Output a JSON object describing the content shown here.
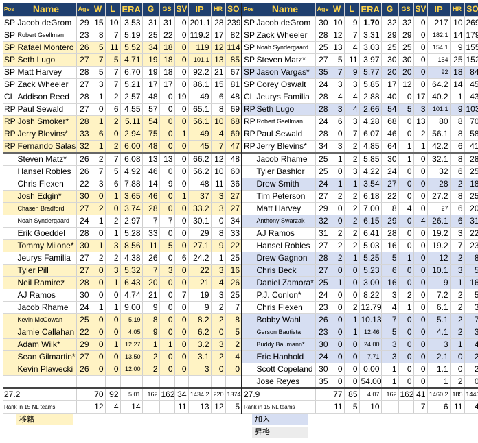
{
  "headers": [
    "Pos",
    "Name",
    "Age",
    "W",
    "L",
    "ERA",
    "G",
    "GS",
    "SV",
    "IP",
    "HR",
    "SO"
  ],
  "rows": [
    {
      "l": [
        "SP",
        "Jacob deGrom",
        "29",
        "15",
        "10",
        "3.53",
        "31",
        "31",
        "0",
        "201.1",
        "28",
        "239"
      ],
      "r": [
        "SP",
        "Jacob deGrom",
        "30",
        "10",
        "9",
        "1.70",
        "32",
        "32",
        "0",
        "217",
        "10",
        "269"
      ]
    },
    {
      "l": [
        "SP",
        "Robert Gsellman",
        "23",
        "8",
        "7",
        "5.19",
        "25",
        "22",
        "0",
        "119.2",
        "17",
        "82"
      ],
      "r": [
        "SP",
        "Zack Wheeler",
        "28",
        "12",
        "7",
        "3.31",
        "29",
        "29",
        "0",
        "182.1",
        "14",
        "179"
      ]
    },
    {
      "l": [
        "SP",
        "Rafael Montero",
        "26",
        "5",
        "11",
        "5.52",
        "34",
        "18",
        "0",
        "119",
        "12",
        "114"
      ],
      "r": [
        "SP",
        "Noah Syndergaard",
        "25",
        "13",
        "4",
        "3.03",
        "25",
        "25",
        "0",
        "154.1",
        "9",
        "155"
      ]
    },
    {
      "l": [
        "SP",
        "Seth Lugo",
        "27",
        "7",
        "5",
        "4.71",
        "19",
        "18",
        "0",
        "101.1",
        "13",
        "85"
      ],
      "r": [
        "SP",
        "Steven Matz*",
        "27",
        "5",
        "11",
        "3.97",
        "30",
        "30",
        "0",
        "154",
        "25",
        "152"
      ]
    },
    {
      "l": [
        "SP",
        "Matt Harvey",
        "28",
        "5",
        "7",
        "6.70",
        "19",
        "18",
        "0",
        "92.2",
        "21",
        "67"
      ],
      "r": [
        "SP",
        "Jason Vargas*",
        "35",
        "7",
        "9",
        "5.77",
        "20",
        "20",
        "0",
        "92",
        "18",
        "84"
      ]
    },
    {
      "l": [
        "SP",
        "Zack Wheeler",
        "27",
        "3",
        "7",
        "5.21",
        "17",
        "17",
        "0",
        "86.1",
        "15",
        "81"
      ],
      "r": [
        "SP",
        "Corey Oswalt",
        "24",
        "3",
        "3",
        "5.85",
        "17",
        "12",
        "0",
        "64.2",
        "14",
        "45"
      ]
    },
    {
      "l": [
        "CL",
        "Addison Reed",
        "28",
        "1",
        "2",
        "2.57",
        "48",
        "0",
        "19",
        "49",
        "6",
        "48"
      ],
      "r": [
        "CL",
        "Jeurys Familia",
        "28",
        "4",
        "4",
        "2.88",
        "40",
        "0",
        "17",
        "40.2",
        "1",
        "43"
      ]
    },
    {
      "l": [
        "RP",
        "Paul Sewald",
        "27",
        "0",
        "6",
        "4.55",
        "57",
        "0",
        "0",
        "65.1",
        "8",
        "69"
      ],
      "r": [
        "RP",
        "Seth Lugo",
        "28",
        "3",
        "4",
        "2.66",
        "54",
        "5",
        "3",
        "101.1",
        "9",
        "103"
      ]
    },
    {
      "l": [
        "RP",
        "Josh Smoker*",
        "28",
        "1",
        "2",
        "5.11",
        "54",
        "0",
        "0",
        "56.1",
        "10",
        "68"
      ],
      "r": [
        "RP",
        "Robert Gsellman",
        "24",
        "6",
        "3",
        "4.28",
        "68",
        "0",
        "13",
        "80",
        "8",
        "70"
      ]
    },
    {
      "l": [
        "RP",
        "Jerry Blevins*",
        "33",
        "6",
        "0",
        "2.94",
        "75",
        "0",
        "1",
        "49",
        "4",
        "69"
      ],
      "r": [
        "RP",
        "Paul Sewald",
        "28",
        "0",
        "7",
        "6.07",
        "46",
        "0",
        "2",
        "56.1",
        "8",
        "58"
      ]
    },
    {
      "l": [
        "RP",
        "Fernando Salas",
        "32",
        "1",
        "2",
        "6.00",
        "48",
        "0",
        "0",
        "45",
        "7",
        "47"
      ],
      "r": [
        "RP",
        "Jerry Blevins*",
        "34",
        "3",
        "2",
        "4.85",
        "64",
        "1",
        "1",
        "42.2",
        "6",
        "41"
      ]
    },
    {
      "l": [
        "",
        "Steven Matz*",
        "26",
        "2",
        "7",
        "6.08",
        "13",
        "13",
        "0",
        "66.2",
        "12",
        "48"
      ],
      "r": [
        "",
        "Jacob Rhame",
        "25",
        "1",
        "2",
        "5.85",
        "30",
        "1",
        "0",
        "32.1",
        "8",
        "28"
      ]
    },
    {
      "l": [
        "",
        "Hansel Robles",
        "26",
        "7",
        "5",
        "4.92",
        "46",
        "0",
        "0",
        "56.2",
        "10",
        "60"
      ],
      "r": [
        "",
        "Tyler Bashlor",
        "25",
        "0",
        "3",
        "4.22",
        "24",
        "0",
        "0",
        "32",
        "6",
        "25"
      ]
    },
    {
      "l": [
        "",
        "Chris Flexen",
        "22",
        "3",
        "6",
        "7.88",
        "14",
        "9",
        "0",
        "48",
        "11",
        "36"
      ],
      "r": [
        "",
        "Drew Smith",
        "24",
        "1",
        "1",
        "3.54",
        "27",
        "0",
        "0",
        "28",
        "2",
        "18"
      ]
    },
    {
      "l": [
        "",
        "Josh Edgin*",
        "30",
        "0",
        "1",
        "3.65",
        "46",
        "0",
        "1",
        "37",
        "3",
        "27"
      ],
      "r": [
        "",
        "Tim Peterson",
        "27",
        "2",
        "2",
        "6.18",
        "22",
        "0",
        "0",
        "27.2",
        "8",
        "25"
      ]
    },
    {
      "l": [
        "",
        "Chasen Bradford",
        "27",
        "2",
        "0",
        "3.74",
        "28",
        "0",
        "0",
        "33.2",
        "3",
        "27"
      ],
      "r": [
        "",
        "Matt Harvey",
        "29",
        "0",
        "2",
        "7.00",
        "8",
        "4",
        "0",
        "27",
        "6",
        "20"
      ]
    },
    {
      "l": [
        "",
        "Noah Syndergaard",
        "24",
        "1",
        "2",
        "2.97",
        "7",
        "7",
        "0",
        "30.1",
        "0",
        "34"
      ],
      "r": [
        "",
        "Anthony Swarzak",
        "32",
        "0",
        "2",
        "6.15",
        "29",
        "0",
        "4",
        "26.1",
        "6",
        "31"
      ]
    },
    {
      "l": [
        "",
        "Erik Goeddel",
        "28",
        "0",
        "1",
        "5.28",
        "33",
        "0",
        "0",
        "29",
        "8",
        "33"
      ],
      "r": [
        "",
        "AJ Ramos",
        "31",
        "2",
        "2",
        "6.41",
        "28",
        "0",
        "0",
        "19.2",
        "3",
        "22"
      ]
    },
    {
      "l": [
        "",
        "Tommy Milone*",
        "30",
        "1",
        "3",
        "8.56",
        "11",
        "5",
        "0",
        "27.1",
        "9",
        "22"
      ],
      "r": [
        "",
        "Hansel Robles",
        "27",
        "2",
        "2",
        "5.03",
        "16",
        "0",
        "0",
        "19.2",
        "7",
        "23"
      ]
    },
    {
      "l": [
        "",
        "Jeurys Familia",
        "27",
        "2",
        "2",
        "4.38",
        "26",
        "0",
        "6",
        "24.2",
        "1",
        "25"
      ],
      "r": [
        "",
        "Drew Gagnon",
        "28",
        "2",
        "1",
        "5.25",
        "5",
        "1",
        "0",
        "12",
        "2",
        "8"
      ]
    },
    {
      "l": [
        "",
        "Tyler Pill",
        "27",
        "0",
        "3",
        "5.32",
        "7",
        "3",
        "0",
        "22",
        "3",
        "16"
      ],
      "r": [
        "",
        "Chris Beck",
        "27",
        "0",
        "0",
        "5.23",
        "6",
        "0",
        "0",
        "10.1",
        "3",
        "5"
      ]
    },
    {
      "l": [
        "",
        "Neil Ramirez",
        "28",
        "0",
        "1",
        "6.43",
        "20",
        "0",
        "0",
        "21",
        "4",
        "26"
      ],
      "r": [
        "",
        "Daniel Zamora*",
        "25",
        "1",
        "0",
        "3.00",
        "16",
        "0",
        "0",
        "9",
        "1",
        "16"
      ]
    },
    {
      "l": [
        "",
        "AJ Ramos",
        "30",
        "0",
        "0",
        "4.74",
        "21",
        "0",
        "7",
        "19",
        "3",
        "25"
      ],
      "r": [
        "",
        "P.J. Conlon*",
        "24",
        "0",
        "0",
        "8.22",
        "3",
        "2",
        "0",
        "7.2",
        "2",
        "5"
      ]
    },
    {
      "l": [
        "",
        "Jacob Rhame",
        "24",
        "1",
        "1",
        "9.00",
        "9",
        "0",
        "0",
        "9",
        "2",
        "7"
      ],
      "r": [
        "",
        "Chris Flexen",
        "23",
        "0",
        "2",
        "12.79",
        "4",
        "1",
        "0",
        "6.1",
        "2",
        "3"
      ]
    },
    {
      "l": [
        "",
        "Kevin McGowan",
        "25",
        "0",
        "0",
        "5.19",
        "8",
        "0",
        "0",
        "8.2",
        "2",
        "8"
      ],
      "r": [
        "",
        "Bobby Wahl",
        "26",
        "0",
        "1",
        "10.13",
        "7",
        "0",
        "0",
        "5.1",
        "2",
        "7"
      ]
    },
    {
      "l": [
        "",
        "Jamie Callahan",
        "22",
        "0",
        "0",
        "4.05",
        "9",
        "0",
        "0",
        "6.2",
        "0",
        "5"
      ],
      "r": [
        "",
        "Gerson Bautista",
        "23",
        "0",
        "1",
        "12.46",
        "5",
        "0",
        "0",
        "4.1",
        "2",
        "3"
      ]
    },
    {
      "l": [
        "",
        "Adam Wilk*",
        "29",
        "0",
        "1",
        "12.27",
        "1",
        "1",
        "0",
        "3.2",
        "3",
        "2"
      ],
      "r": [
        "",
        "Buddy Baumann*",
        "30",
        "0",
        "0",
        "24.00",
        "3",
        "0",
        "0",
        "3",
        "1",
        "4"
      ]
    },
    {
      "l": [
        "",
        "Sean Gilmartin*",
        "27",
        "0",
        "0",
        "13.50",
        "2",
        "0",
        "0",
        "3.1",
        "2",
        "4"
      ],
      "r": [
        "",
        "Eric Hanhold",
        "24",
        "0",
        "0",
        "7.71",
        "3",
        "0",
        "0",
        "2.1",
        "0",
        "2"
      ]
    },
    {
      "l": [
        "",
        "Kevin Plawecki",
        "26",
        "0",
        "0",
        "12.00",
        "2",
        "0",
        "0",
        "3",
        "0",
        "0"
      ],
      "r": [
        "",
        "Scott Copeland",
        "30",
        "0",
        "0",
        "0.00",
        "1",
        "0",
        "0",
        "1.1",
        "0",
        "2"
      ]
    },
    {
      "l": [
        "",
        "",
        "",
        "",
        "",
        "",
        "",
        "",
        "",
        "",
        "",
        ""
      ],
      "r": [
        "",
        "Jose Reyes",
        "35",
        "0",
        "0",
        "54.00",
        "1",
        "0",
        "0",
        "1",
        "2",
        "0"
      ]
    }
  ],
  "totals": {
    "l": [
      "27.2",
      "",
      "70",
      "92",
      "5.01",
      "162",
      "162",
      "34",
      "1434.2",
      "220",
      "1374"
    ],
    "r": [
      "27.9",
      "",
      "77",
      "85",
      "4.07",
      "162",
      "162",
      "41",
      "1460.2",
      "185",
      "1446"
    ]
  },
  "ranks": {
    "label": "Rank in 15 NL teams",
    "l": [
      "",
      "12",
      "4",
      "14",
      "",
      "",
      "11",
      "13",
      "12",
      "5"
    ],
    "r": [
      "",
      "11",
      "5",
      "10",
      "",
      "",
      "7",
      "6",
      "11",
      "4"
    ]
  },
  "legend": {
    "departed": "移籍",
    "joined": "加入",
    "promoted": "昇格"
  },
  "colors": {
    "header_bg": "#1f3f6e",
    "header_text": "#ffd54a",
    "departed": "#fff3c4",
    "joined": "#d6def2"
  }
}
